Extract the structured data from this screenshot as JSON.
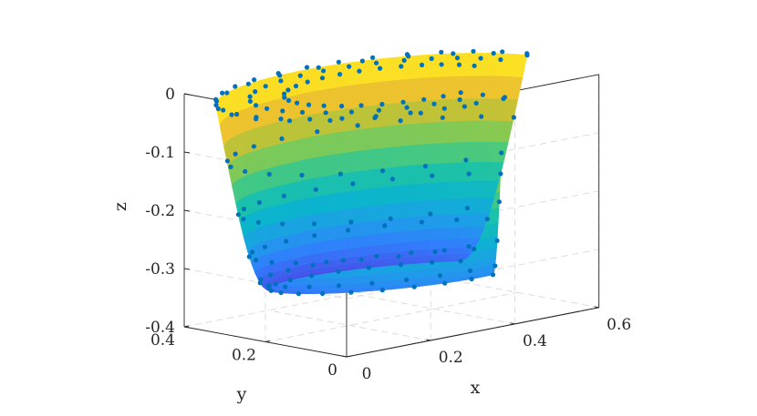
{
  "chart_data": {
    "type": "surface3d",
    "title": "",
    "xlabel": "x",
    "ylabel": "y",
    "zlabel": "z",
    "xlim": [
      0,
      0.6
    ],
    "ylim": [
      0,
      0.4
    ],
    "zlim": [
      -0.4,
      0
    ],
    "xticks": [
      {
        "value": 0,
        "label": "0"
      },
      {
        "value": 0.2,
        "label": "0.2"
      },
      {
        "value": 0.4,
        "label": "0.4"
      },
      {
        "value": 0.6,
        "label": "0.6"
      }
    ],
    "yticks": [
      {
        "value": 0,
        "label": "0"
      },
      {
        "value": 0.2,
        "label": "0.2"
      },
      {
        "value": 0.4,
        "label": "0.4"
      }
    ],
    "zticks": [
      {
        "value": 0,
        "label": "0"
      },
      {
        "value": -0.1,
        "label": "-0.1"
      },
      {
        "value": -0.2,
        "label": "-0.2"
      },
      {
        "value": -0.3,
        "label": "-0.3"
      },
      {
        "value": -0.4,
        "label": "-0.4"
      }
    ],
    "grid": true,
    "colormap": "parula",
    "marker_color": "#0072bd",
    "series": [
      {
        "type": "surface",
        "function": "cylindrical shell, inner radius ~0.2, outer ~0.35, angle 0 to 3pi/2, depth 0 to -0.36"
      },
      {
        "type": "scatter3",
        "points": "grid sampling of the same surface"
      }
    ]
  }
}
